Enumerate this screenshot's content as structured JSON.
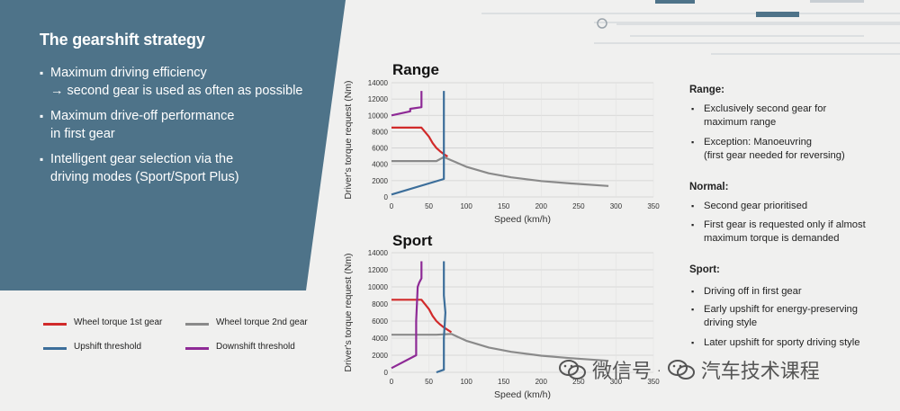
{
  "panel": {
    "title": "The gearshift strategy",
    "bullets": [
      {
        "line1": "Maximum driving efficiency",
        "line2": "→ second gear is used as often as possible"
      },
      {
        "line1": "Maximum drive-off performance",
        "line2": "in first gear"
      },
      {
        "line1": "Intelligent gear selection via the",
        "line2": "driving modes (Sport/Sport Plus)"
      }
    ],
    "color": "#4e7389"
  },
  "legend": [
    {
      "label": "Wheel torque 1st gear",
      "color": "#d12a2a"
    },
    {
      "label": "Wheel torque 2nd gear",
      "color": "#8a8a8a"
    },
    {
      "label": "Upshift threshold",
      "color": "#3c6e9a"
    },
    {
      "label": "Downshift threshold",
      "color": "#8e2a96"
    }
  ],
  "chart_data": [
    {
      "type": "line",
      "title": "Range",
      "xlabel": "Speed (km/h)",
      "ylabel": "Driver's torque request (Nm)",
      "xlim": [
        0,
        350
      ],
      "ylim": [
        0,
        14000
      ],
      "xticks": [
        0,
        50,
        100,
        150,
        200,
        250,
        300,
        350
      ],
      "yticks": [
        0,
        2000,
        4000,
        6000,
        8000,
        10000,
        12000,
        14000
      ],
      "grid": true,
      "series": [
        {
          "name": "Wheel torque 1st gear",
          "color": "#d12a2a",
          "x": [
            0,
            20,
            40,
            50,
            55,
            60,
            65,
            70,
            75
          ],
          "y": [
            8500,
            8500,
            8500,
            7400,
            6600,
            6000,
            5600,
            5250,
            4950
          ]
        },
        {
          "name": "Wheel torque 2nd gear",
          "color": "#8a8a8a",
          "x": [
            0,
            60,
            70,
            80,
            100,
            130,
            160,
            200,
            240,
            290
          ],
          "y": [
            4400,
            4400,
            4900,
            4500,
            3700,
            2900,
            2400,
            1950,
            1650,
            1350
          ]
        },
        {
          "name": "Upshift threshold",
          "color": "#3c6e9a",
          "x": [
            0,
            70,
            70,
            70
          ],
          "y": [
            300,
            2200,
            6500,
            13000
          ]
        },
        {
          "name": "Downshift threshold",
          "color": "#8e2a96",
          "x": [
            0,
            25,
            25,
            40,
            40
          ],
          "y": [
            10000,
            10500,
            10800,
            11000,
            13000
          ]
        }
      ]
    },
    {
      "type": "line",
      "title": "Sport",
      "xlabel": "Speed (km/h)",
      "ylabel": "Driver's torque request (Nm)",
      "xlim": [
        0,
        350
      ],
      "ylim": [
        0,
        14000
      ],
      "xticks": [
        0,
        50,
        100,
        150,
        200,
        250,
        300,
        350
      ],
      "yticks": [
        0,
        2000,
        4000,
        6000,
        8000,
        10000,
        12000,
        14000
      ],
      "grid": true,
      "series": [
        {
          "name": "Wheel torque 1st gear",
          "color": "#d12a2a",
          "x": [
            0,
            30,
            40,
            50,
            55,
            60,
            65,
            70,
            80
          ],
          "y": [
            8500,
            8500,
            8500,
            7400,
            6600,
            6000,
            5600,
            5250,
            4700
          ]
        },
        {
          "name": "Wheel torque 2nd gear",
          "color": "#8a8a8a",
          "x": [
            0,
            60,
            80,
            100,
            130,
            160,
            200,
            240,
            290
          ],
          "y": [
            4400,
            4400,
            4500,
            3700,
            2900,
            2400,
            1950,
            1650,
            1350
          ]
        },
        {
          "name": "Upshift threshold",
          "color": "#3c6e9a",
          "x": [
            60,
            70,
            70,
            72,
            70,
            70,
            70
          ],
          "y": [
            0,
            300,
            4000,
            7000,
            9000,
            11000,
            13000
          ]
        },
        {
          "name": "Downshift threshold",
          "color": "#8e2a96",
          "x": [
            0,
            33,
            33,
            35,
            37,
            40,
            40
          ],
          "y": [
            500,
            2000,
            6000,
            10000,
            10500,
            11000,
            13000
          ]
        }
      ]
    }
  ],
  "notes": [
    {
      "heading": "Range:",
      "bullets": [
        {
          "lines": [
            "Exclusively second gear for",
            "maximum range"
          ]
        },
        {
          "lines": [
            "Exception: Manoeuvring",
            "(first gear needed for reversing)"
          ]
        }
      ]
    },
    {
      "heading": "Normal:",
      "bullets": [
        {
          "lines": [
            "Second gear prioritised"
          ]
        },
        {
          "lines": [
            "First gear is requested only if almost",
            "maximum torque is demanded"
          ]
        }
      ]
    },
    {
      "heading": "Sport:",
      "bullets": [
        {
          "lines": [
            "Driving off in first gear"
          ]
        },
        {
          "lines": [
            "Early upshift for energy-preserving",
            "driving style"
          ]
        },
        {
          "lines": [
            "Later upshift for sporty driving style"
          ]
        }
      ]
    }
  ],
  "watermark": {
    "text1": "微信号",
    "sep": "·",
    "text2": "汽车技术课程"
  }
}
